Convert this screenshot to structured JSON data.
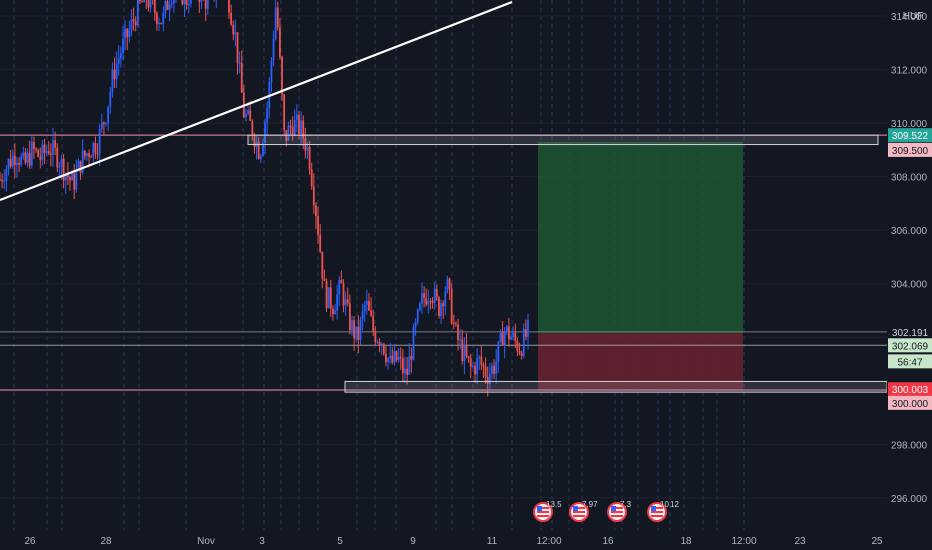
{
  "currency_label": "HUF",
  "chart_data": {
    "type": "candlestick",
    "x_tick_labels": [
      "26",
      "28",
      "Nov",
      "3",
      "5",
      "9",
      "11",
      "12:00",
      "16",
      "18",
      "12:00",
      "23",
      "25"
    ],
    "y_tick_labels": [
      "314.000",
      "312.000",
      "310.000",
      "308.000",
      "306.000",
      "304.000",
      "302.000",
      "300.000",
      "298.000",
      "296.000"
    ],
    "y_ticks": [
      314,
      312,
      310,
      308,
      306,
      304,
      302,
      300,
      298,
      296
    ],
    "ylim": [
      294.8,
      314.6
    ],
    "price_markers": [
      {
        "label": "309.522",
        "value": 309.55,
        "bg": "#26a69a",
        "fg": "#ffffff"
      },
      {
        "label": "309.500",
        "value": 309.0,
        "bg": "#f4b8c3",
        "fg": "#131722"
      },
      {
        "label": "302.191",
        "value": 302.2,
        "bg": "#131722",
        "fg": "#d1d4dc"
      },
      {
        "label": "302.069",
        "value": 301.7,
        "bg": "#c8e6c9",
        "fg": "#131722"
      },
      {
        "label": "56:47",
        "value": 301.1,
        "bg": "#c8e6c9",
        "fg": "#131722"
      },
      {
        "label": "300.003",
        "value": 300.06,
        "bg": "#f23645",
        "fg": "#ffffff"
      },
      {
        "label": "300.000",
        "value": 299.55,
        "bg": "#f4b8c3",
        "fg": "#131722"
      }
    ],
    "horizontal_lines": [
      {
        "value": 309.55,
        "color": "#f48fb1"
      },
      {
        "value": 302.2,
        "color": "#787b86"
      },
      {
        "value": 301.7,
        "color": "#9598a1"
      },
      {
        "value": 300.03,
        "color": "#f48fb1"
      }
    ],
    "zones": [
      {
        "kind": "resistance",
        "top": 309.55,
        "bottom": 309.2
      },
      {
        "kind": "support",
        "top": 300.35,
        "bottom": 299.95
      }
    ],
    "position": {
      "side": "long",
      "entry": 302.15,
      "stop": 300.0,
      "target": 309.3
    },
    "trendline": [
      {
        "x": 0,
        "y": 307.0
      },
      {
        "x": 1,
        "y": 315.0
      }
    ],
    "events": [
      {
        "label": "13.5"
      },
      {
        "label": "7.97"
      },
      {
        "label": "7.3"
      },
      {
        "label": "10"
      },
      {
        "label": "12"
      }
    ],
    "price_path": [
      307.9,
      308.5,
      308.9,
      308.4,
      309.0,
      308.7,
      309.1,
      308.8,
      308.2,
      307.7,
      308.6,
      309.0,
      309.3,
      310.3,
      311.9,
      312.8,
      313.5,
      314.3,
      314.7,
      314.2,
      313.8,
      314.9,
      315.0,
      314.6,
      315.3,
      314.5,
      314.8,
      315.2,
      314.9,
      313.2,
      310.4,
      309.8,
      308.9,
      310.8,
      314.6,
      309.4,
      310.0,
      309.8,
      308.9,
      306.5,
      303.6,
      303.2,
      303.9,
      302.6,
      301.9,
      303.3,
      302.2,
      301.9,
      301.0,
      301.2,
      300.5,
      302.1,
      303.4,
      303.8,
      303.1,
      304.0,
      302.2,
      301.4,
      300.8,
      301.1,
      300.6,
      301.0,
      302.3,
      302.0,
      301.6,
      302.2
    ]
  }
}
